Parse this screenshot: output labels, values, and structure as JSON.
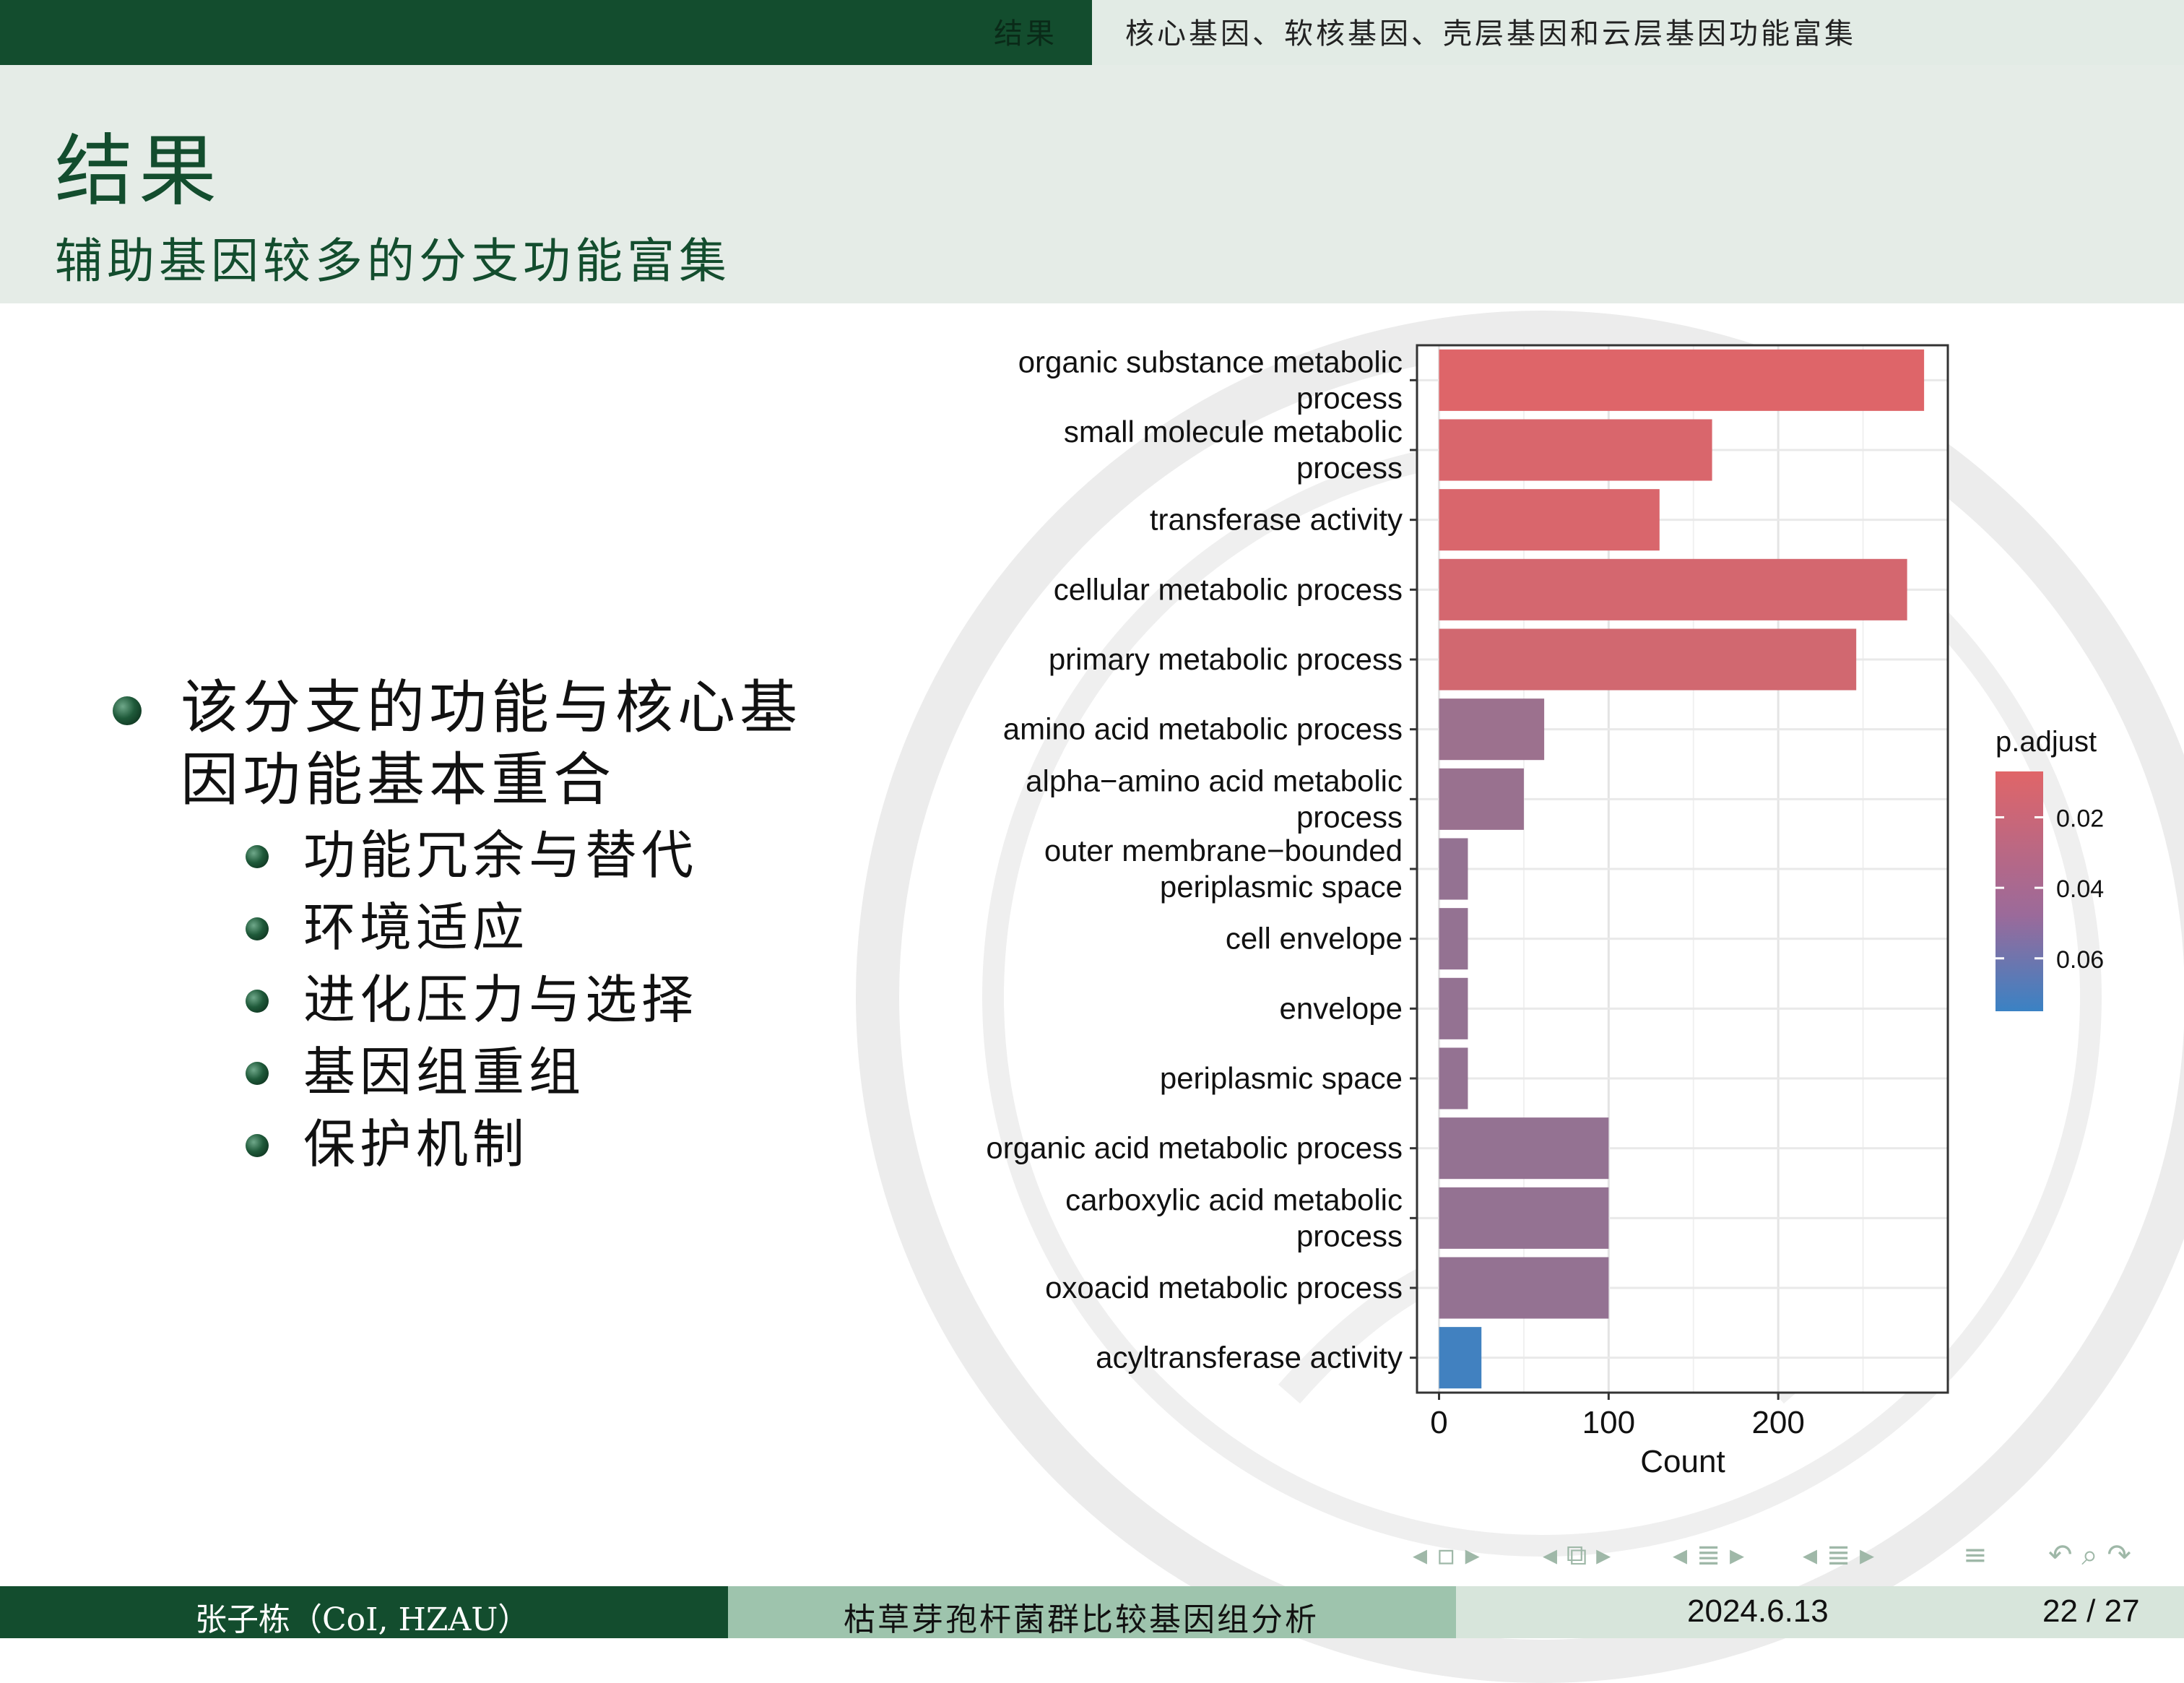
{
  "header": {
    "section": "结果",
    "subsection": "核心基因、软核基因、壳层基因和云层基因功能富集"
  },
  "frame": {
    "title": "结果",
    "subtitle": "辅助基因较多的分支功能富集"
  },
  "bullets": {
    "main": "该分支的功能与核心基因功能基本重合",
    "items": [
      "功能冗余与替代",
      "环境适应",
      "进化压力与选择",
      "基因组重组",
      "保护机制"
    ]
  },
  "chart_data": {
    "type": "bar",
    "orientation": "horizontal",
    "categories": [
      "organic substance metabolic process",
      "small molecule metabolic process",
      "transferase activity",
      "cellular metabolic process",
      "primary metabolic process",
      "amino acid metabolic process",
      "alpha−amino acid metabolic process",
      "outer membrane−bounded periplasmic space",
      "cell envelope",
      "envelope",
      "periplasmic space",
      "organic acid metabolic process",
      "carboxylic acid metabolic process",
      "oxoacid metabolic process",
      "acyltransferase activity"
    ],
    "category_lines": [
      [
        "organic substance metabolic",
        "process"
      ],
      [
        "small molecule metabolic",
        "process"
      ],
      [
        "transferase activity"
      ],
      [
        "cellular metabolic process"
      ],
      [
        "primary metabolic process"
      ],
      [
        "amino acid metabolic process"
      ],
      [
        "alpha−amino acid metabolic",
        "process"
      ],
      [
        "outer membrane−bounded",
        "periplasmic space"
      ],
      [
        "cell envelope"
      ],
      [
        "envelope"
      ],
      [
        "periplasmic space"
      ],
      [
        "organic acid metabolic process"
      ],
      [
        "carboxylic acid metabolic",
        "process"
      ],
      [
        "oxoacid metabolic process"
      ],
      [
        "acyltransferase activity"
      ]
    ],
    "values": [
      286,
      161,
      130,
      276,
      246,
      62,
      50,
      17,
      17,
      17,
      17,
      100,
      100,
      100,
      25
    ],
    "p_adjust": [
      0.008,
      0.01,
      0.01,
      0.012,
      0.013,
      0.035,
      0.036,
      0.038,
      0.038,
      0.038,
      0.038,
      0.038,
      0.038,
      0.038,
      0.072
    ],
    "xlabel": "Count",
    "xlim": [
      -13,
      300
    ],
    "xticks": [
      0,
      100,
      200
    ],
    "grid": true,
    "legend": {
      "title": "p.adjust",
      "ticks": [
        0.02,
        0.04,
        0.06
      ],
      "range": [
        0.007,
        0.075
      ],
      "color_low": "#e06568",
      "color_high": "#3a82c4",
      "placement": "right"
    }
  },
  "footer": {
    "author": "张子栋（CoI, HZAU）",
    "talk_title": "枯草芽孢杆菌群比较基因组分析",
    "date": "2024.6.13",
    "page": "22 / 27"
  }
}
